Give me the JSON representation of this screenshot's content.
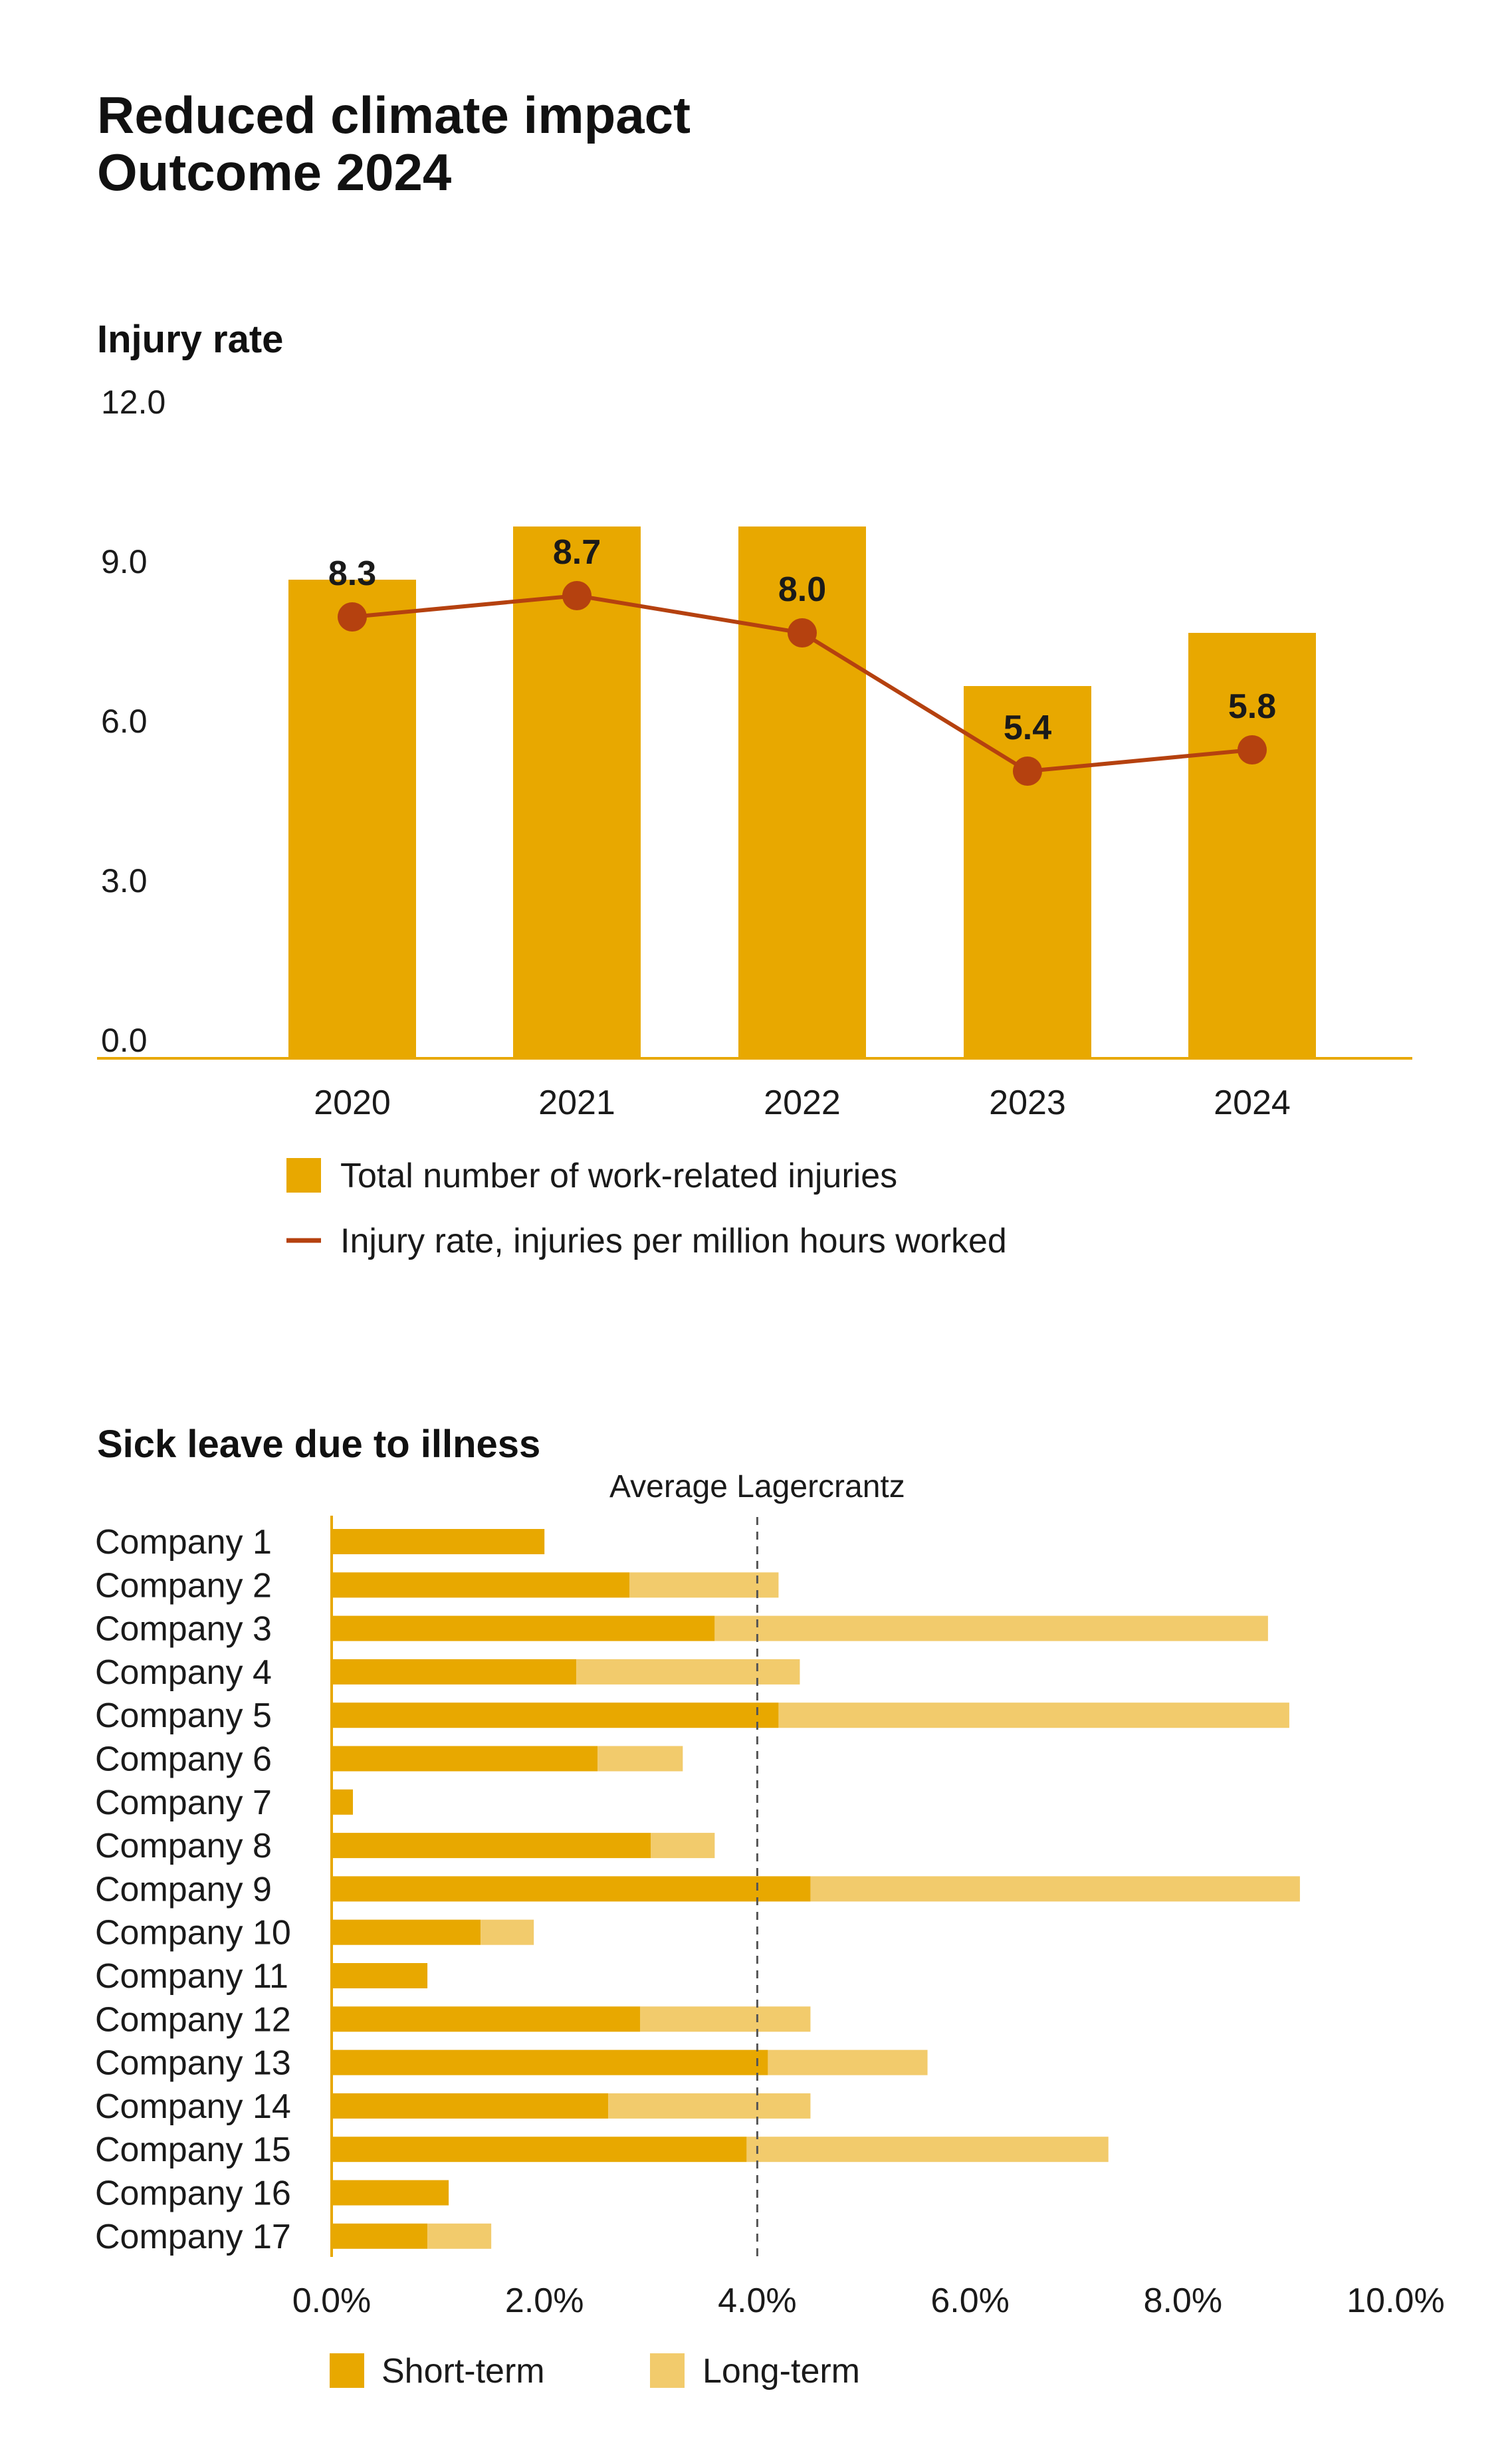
{
  "title": {
    "line1": "Reduced climate impact",
    "line2": "Outcome 2024"
  },
  "colors": {
    "bar": "#E8A800",
    "line": "#B5410F",
    "short_term": "#E8A800",
    "long_term": "#F2CB6C",
    "axis": "#E8A800",
    "avg_line": "#555555"
  },
  "chart_data": [
    {
      "type": "bar",
      "title": "Injury rate",
      "categories": [
        "2020",
        "2021",
        "2022",
        "2023",
        "2024"
      ],
      "ylim": [
        0,
        12
      ],
      "yticks": [
        "0.0",
        "3.0",
        "6.0",
        "9.0",
        "12.0"
      ],
      "series": [
        {
          "name": "Total number of work-related injuries",
          "kind": "bar",
          "values": [
            9.0,
            10.0,
            10.0,
            7.0,
            8.0
          ]
        },
        {
          "name": "Injury rate, injuries per million hours worked",
          "kind": "line",
          "values": [
            8.3,
            8.7,
            8.0,
            5.4,
            5.8
          ],
          "labels": [
            "8.3",
            "8.7",
            "8.0",
            "5.4",
            "5.8"
          ]
        }
      ]
    },
    {
      "type": "bar",
      "orientation": "horizontal",
      "stacked": true,
      "title": "Sick leave due to illness",
      "annotation": "Average Lagercrantz",
      "average": 4.0,
      "xlim": [
        0,
        10
      ],
      "xticks": [
        "0.0%",
        "2.0%",
        "4.0%",
        "6.0%",
        "8.0%",
        "10.0%"
      ],
      "categories": [
        "Company 1",
        "Company 2",
        "Company 3",
        "Company 4",
        "Company 5",
        "Company 6",
        "Company 7",
        "Company 8",
        "Company 9",
        "Company 10",
        "Company 11",
        "Company 12",
        "Company 13",
        "Company 14",
        "Company 15",
        "Company 16",
        "Company 17"
      ],
      "series": [
        {
          "name": "Short-term",
          "values": [
            2.0,
            2.8,
            3.6,
            2.3,
            4.2,
            2.5,
            0.2,
            3.0,
            4.5,
            1.4,
            0.9,
            2.9,
            4.1,
            2.6,
            3.9,
            1.1,
            0.9
          ]
        },
        {
          "name": "Long-term",
          "values": [
            0.0,
            1.4,
            5.2,
            2.1,
            4.8,
            0.8,
            0.0,
            0.6,
            4.6,
            0.5,
            0.0,
            1.6,
            1.5,
            1.9,
            3.4,
            0.0,
            0.6
          ]
        }
      ]
    }
  ]
}
